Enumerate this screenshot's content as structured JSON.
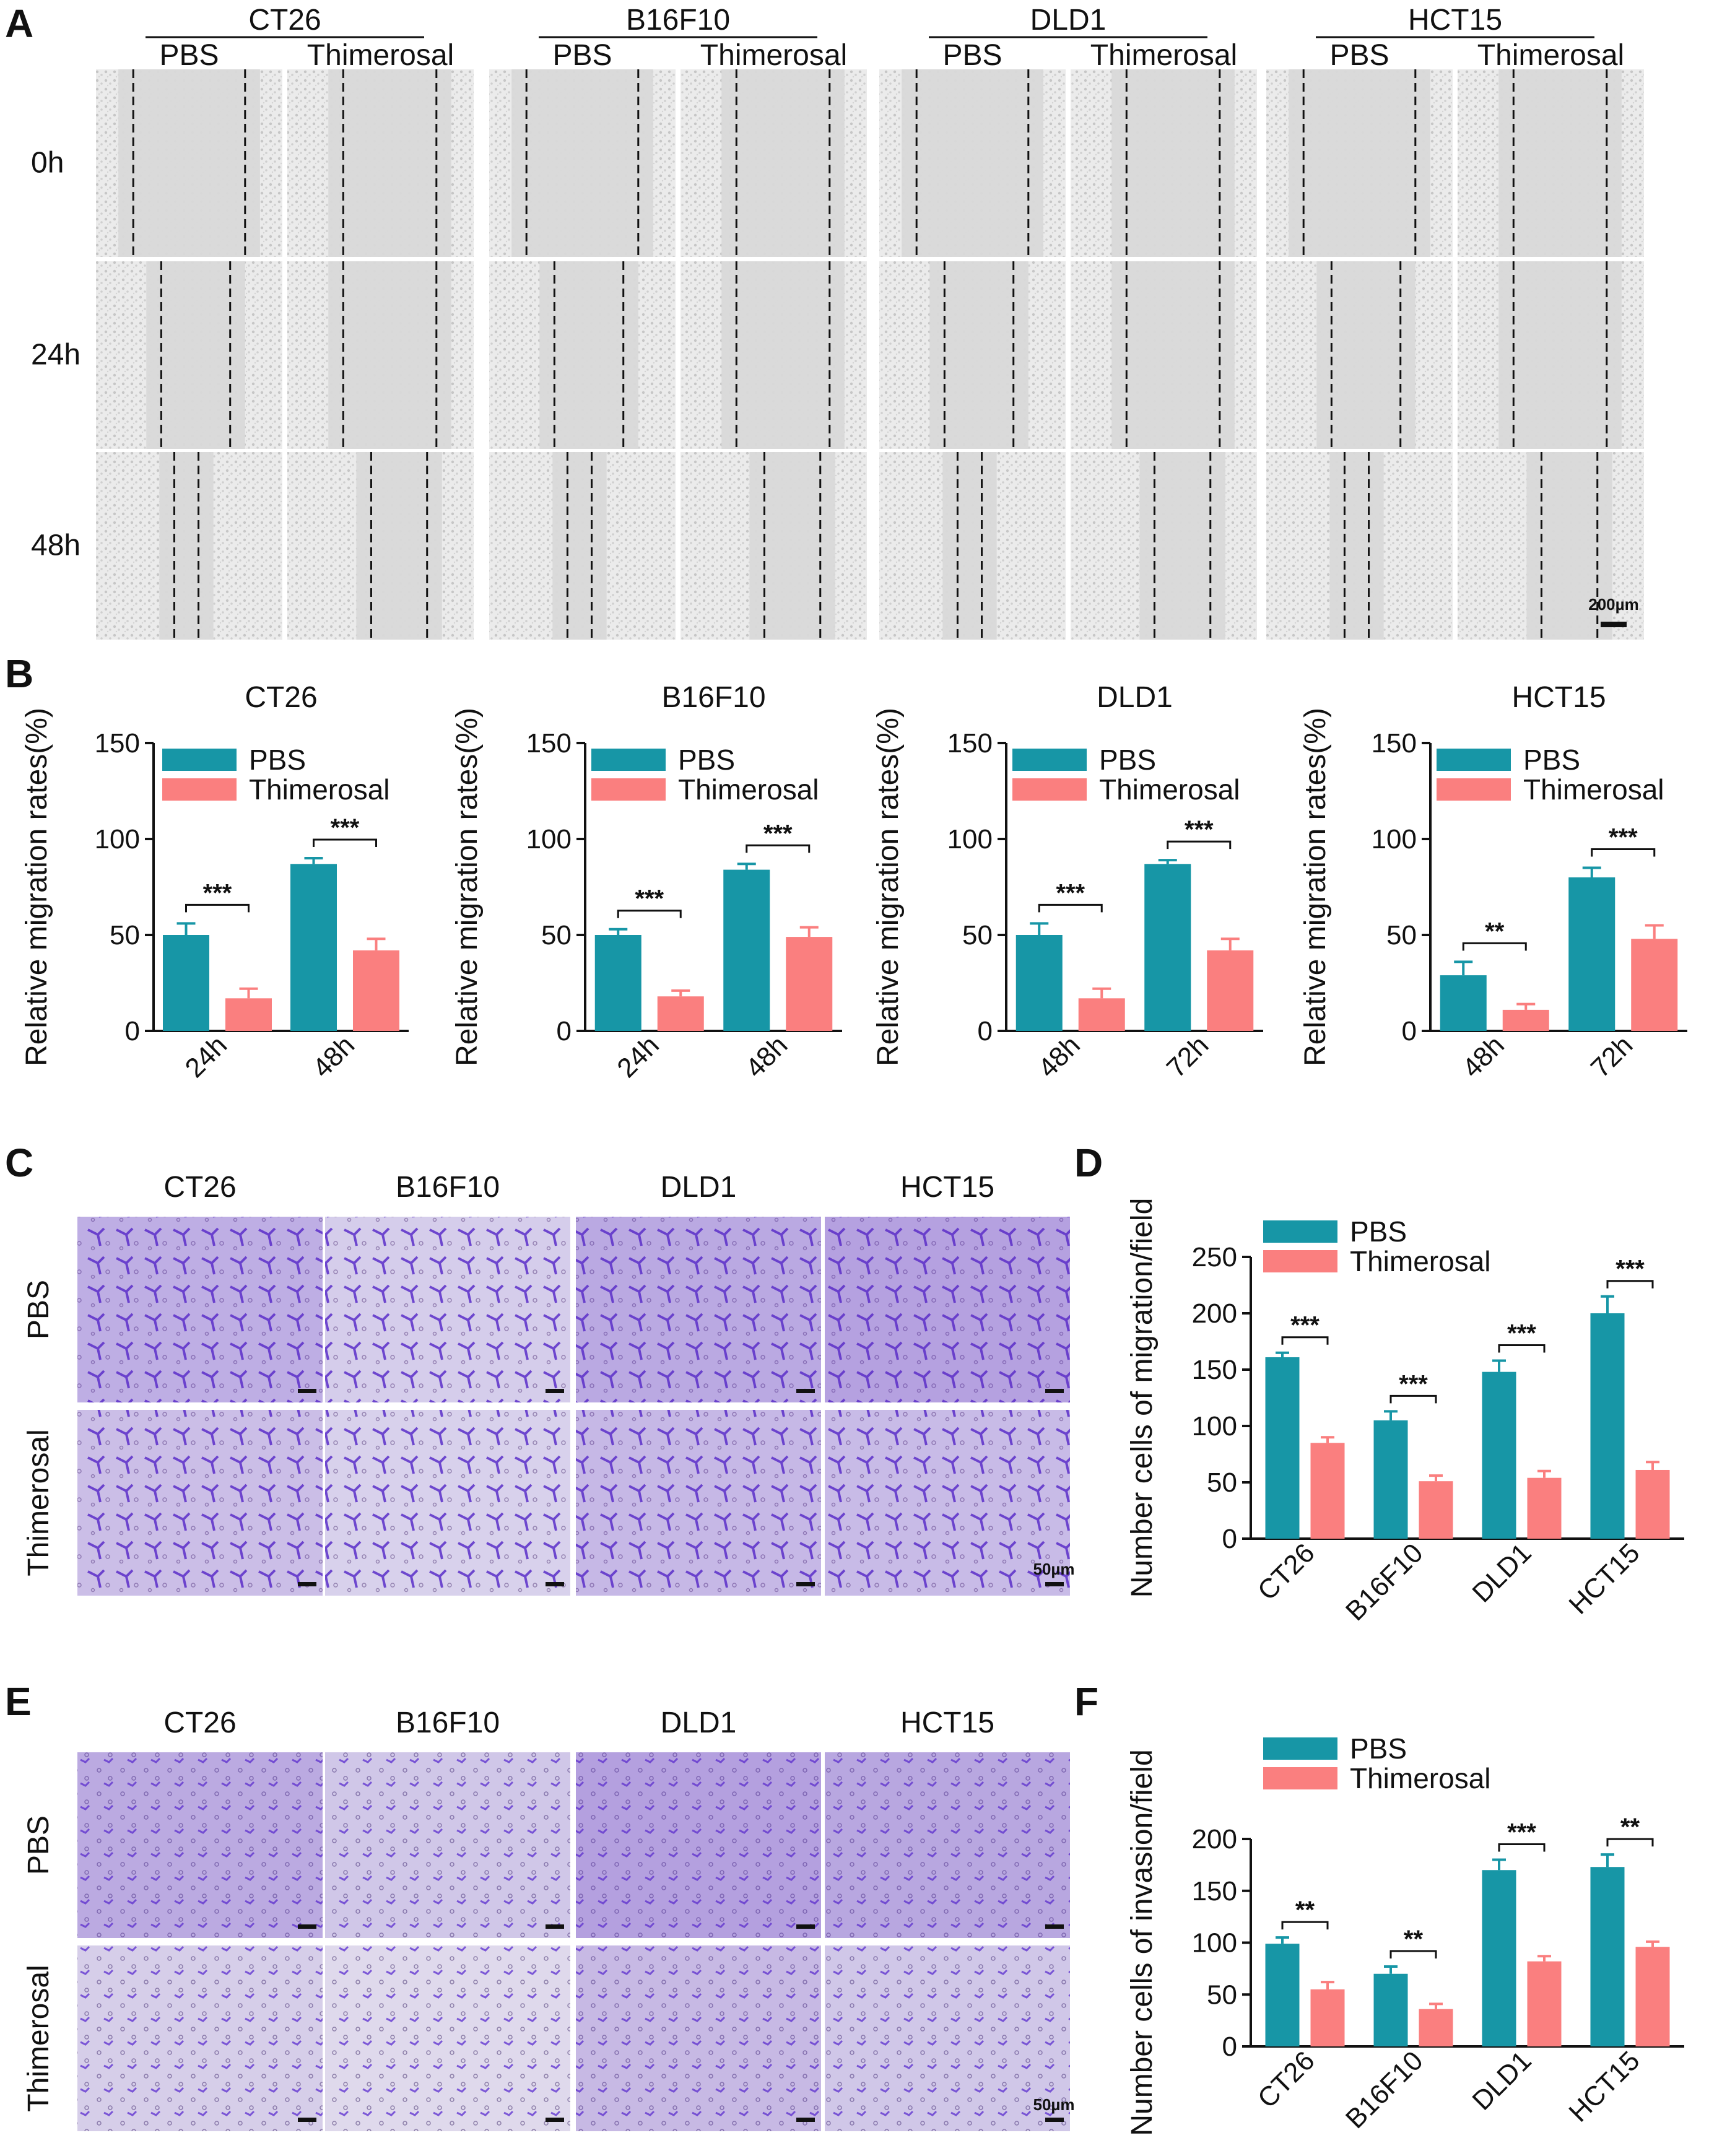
{
  "colors": {
    "pbs": "#1796a6",
    "thimerosal": "#fa7f7f",
    "wound_bg": "#d9d9d9",
    "wound_texture": "#c3c3c3",
    "stain_light": "#b8a6e6",
    "stain_dark": "#5e2fc4",
    "stain_bg": "#ddd6ee"
  },
  "icons": {
    "microscopy": "micrograph-image",
    "scale_bar": "scale-bar-icon"
  },
  "panel_letters": [
    "A",
    "B",
    "C",
    "D",
    "E",
    "F"
  ],
  "panelA": {
    "cell_lines": [
      "CT26",
      "B16F10",
      "DLD1",
      "HCT15"
    ],
    "treatments": [
      "PBS",
      "Thimerosal"
    ],
    "timepoints": [
      "0h",
      "24h",
      "48h"
    ],
    "scale_label": "200µm"
  },
  "panelC": {
    "cell_lines": [
      "CT26",
      "B16F10",
      "DLD1",
      "HCT15"
    ],
    "rows": [
      "PBS",
      "Thimerosal"
    ],
    "scale_label": "50µm"
  },
  "panelE": {
    "cell_lines": [
      "CT26",
      "B16F10",
      "DLD1",
      "HCT15"
    ],
    "rows": [
      "PBS",
      "Thimerosal"
    ],
    "scale_label": "50µm"
  },
  "chart_data": [
    {
      "id": "B1",
      "type": "bar",
      "title": "CT26",
      "ylabel": "Relative migration rates(%)",
      "xlabel": "",
      "ylim": [
        0,
        150
      ],
      "yticks": [
        0,
        50,
        100,
        150
      ],
      "categories": [
        "24h",
        "48h"
      ],
      "series": [
        {
          "name": "PBS",
          "values": [
            50,
            87
          ],
          "errors": [
            6,
            3
          ]
        },
        {
          "name": "Thimerosal",
          "values": [
            17,
            42
          ],
          "errors": [
            5,
            6
          ]
        }
      ],
      "significance": [
        "***",
        "***"
      ]
    },
    {
      "id": "B2",
      "type": "bar",
      "title": "B16F10",
      "ylabel": "Relative migration rates(%)",
      "xlabel": "",
      "ylim": [
        0,
        150
      ],
      "yticks": [
        0,
        50,
        100,
        150
      ],
      "categories": [
        "24h",
        "48h"
      ],
      "series": [
        {
          "name": "PBS",
          "values": [
            50,
            84
          ],
          "errors": [
            3,
            3
          ]
        },
        {
          "name": "Thimerosal",
          "values": [
            18,
            49
          ],
          "errors": [
            3,
            5
          ]
        }
      ],
      "significance": [
        "***",
        "***"
      ]
    },
    {
      "id": "B3",
      "type": "bar",
      "title": "DLD1",
      "ylabel": "Relative migration rates(%)",
      "xlabel": "",
      "ylim": [
        0,
        150
      ],
      "yticks": [
        0,
        50,
        100,
        150
      ],
      "categories": [
        "48h",
        "72h"
      ],
      "series": [
        {
          "name": "PBS",
          "values": [
            50,
            87
          ],
          "errors": [
            6,
            2
          ]
        },
        {
          "name": "Thimerosal",
          "values": [
            17,
            42
          ],
          "errors": [
            5,
            6
          ]
        }
      ],
      "significance": [
        "***",
        "***"
      ]
    },
    {
      "id": "B4",
      "type": "bar",
      "title": "HCT15",
      "ylabel": "Relative migration rates(%)",
      "xlabel": "",
      "ylim": [
        0,
        150
      ],
      "yticks": [
        0,
        50,
        100,
        150
      ],
      "categories": [
        "48h",
        "72h"
      ],
      "series": [
        {
          "name": "PBS",
          "values": [
            29,
            80
          ],
          "errors": [
            7,
            5
          ]
        },
        {
          "name": "Thimerosal",
          "values": [
            11,
            48
          ],
          "errors": [
            3,
            7
          ]
        }
      ],
      "significance": [
        "**",
        "***"
      ]
    },
    {
      "id": "D",
      "type": "bar",
      "title": "",
      "ylabel": "Number cells of migration/field",
      "xlabel": "",
      "ylim": [
        0,
        250
      ],
      "yticks": [
        0,
        50,
        100,
        150,
        200,
        250
      ],
      "categories": [
        "CT26",
        "B16F10",
        "DLD1",
        "HCT15"
      ],
      "series": [
        {
          "name": "PBS",
          "values": [
            161,
            105,
            148,
            200
          ],
          "errors": [
            4,
            8,
            10,
            15
          ]
        },
        {
          "name": "Thimerosal",
          "values": [
            85,
            51,
            54,
            61
          ],
          "errors": [
            5,
            5,
            6,
            7
          ]
        }
      ],
      "significance": [
        "***",
        "***",
        "***",
        "***"
      ]
    },
    {
      "id": "F",
      "type": "bar",
      "title": "",
      "ylabel": "Number cells of invasion/field",
      "xlabel": "",
      "ylim": [
        0,
        200
      ],
      "yticks": [
        0,
        50,
        100,
        150,
        200
      ],
      "categories": [
        "CT26",
        "B16F10",
        "DLD1",
        "HCT15"
      ],
      "series": [
        {
          "name": "PBS",
          "values": [
            99,
            70,
            170,
            173
          ],
          "errors": [
            6,
            7,
            10,
            12
          ]
        },
        {
          "name": "Thimerosal",
          "values": [
            55,
            36,
            82,
            96
          ],
          "errors": [
            7,
            5,
            5,
            5
          ]
        }
      ],
      "significance": [
        "**",
        "**",
        "***",
        "**"
      ]
    }
  ]
}
